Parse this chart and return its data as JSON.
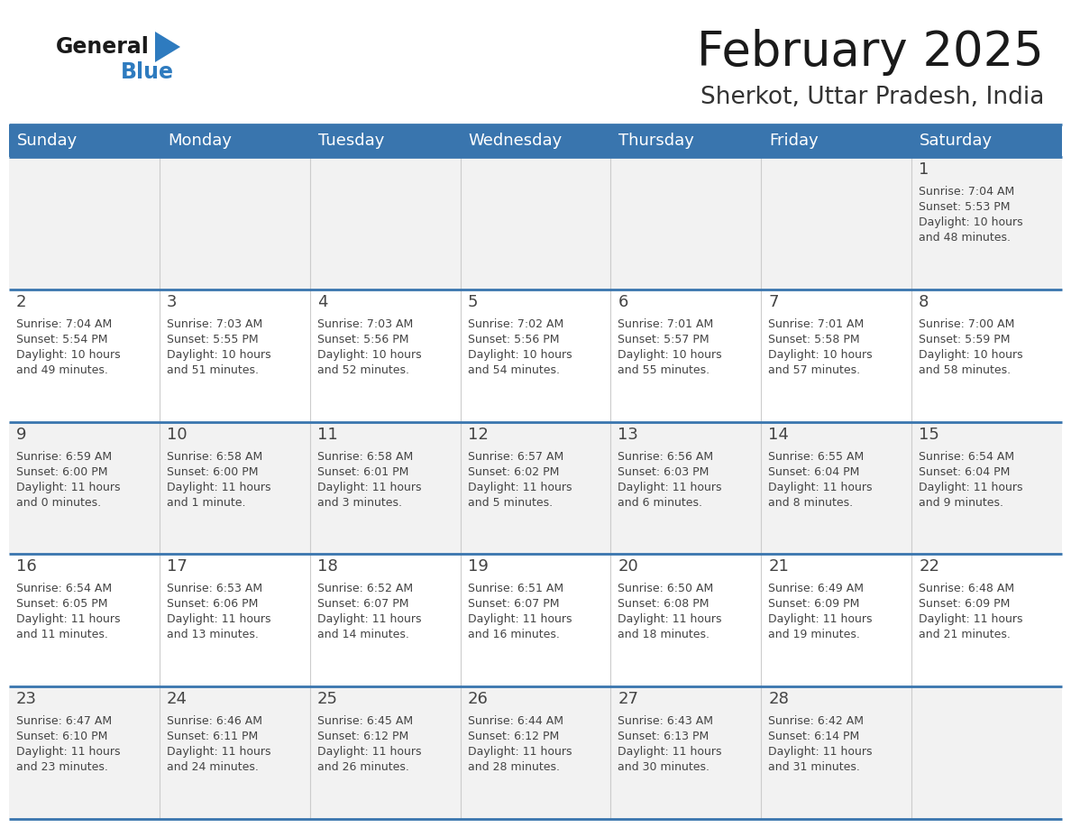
{
  "title": "February 2025",
  "subtitle": "Sherkot, Uttar Pradesh, India",
  "days_of_week": [
    "Sunday",
    "Monday",
    "Tuesday",
    "Wednesday",
    "Thursday",
    "Friday",
    "Saturday"
  ],
  "header_bg": "#3975ae",
  "header_text": "#ffffff",
  "cell_bg_light": "#f2f2f2",
  "cell_bg_white": "#ffffff",
  "divider_color": "#3975ae",
  "text_color": "#444444",
  "title_color": "#1a1a1a",
  "subtitle_color": "#333333",
  "logo_general_color": "#1a1a1a",
  "logo_blue_color": "#2e7bbf",
  "calendar_data": [
    [
      {
        "day": null,
        "info": null
      },
      {
        "day": null,
        "info": null
      },
      {
        "day": null,
        "info": null
      },
      {
        "day": null,
        "info": null
      },
      {
        "day": null,
        "info": null
      },
      {
        "day": null,
        "info": null
      },
      {
        "day": 1,
        "info": "Sunrise: 7:04 AM\nSunset: 5:53 PM\nDaylight: 10 hours\nand 48 minutes."
      }
    ],
    [
      {
        "day": 2,
        "info": "Sunrise: 7:04 AM\nSunset: 5:54 PM\nDaylight: 10 hours\nand 49 minutes."
      },
      {
        "day": 3,
        "info": "Sunrise: 7:03 AM\nSunset: 5:55 PM\nDaylight: 10 hours\nand 51 minutes."
      },
      {
        "day": 4,
        "info": "Sunrise: 7:03 AM\nSunset: 5:56 PM\nDaylight: 10 hours\nand 52 minutes."
      },
      {
        "day": 5,
        "info": "Sunrise: 7:02 AM\nSunset: 5:56 PM\nDaylight: 10 hours\nand 54 minutes."
      },
      {
        "day": 6,
        "info": "Sunrise: 7:01 AM\nSunset: 5:57 PM\nDaylight: 10 hours\nand 55 minutes."
      },
      {
        "day": 7,
        "info": "Sunrise: 7:01 AM\nSunset: 5:58 PM\nDaylight: 10 hours\nand 57 minutes."
      },
      {
        "day": 8,
        "info": "Sunrise: 7:00 AM\nSunset: 5:59 PM\nDaylight: 10 hours\nand 58 minutes."
      }
    ],
    [
      {
        "day": 9,
        "info": "Sunrise: 6:59 AM\nSunset: 6:00 PM\nDaylight: 11 hours\nand 0 minutes."
      },
      {
        "day": 10,
        "info": "Sunrise: 6:58 AM\nSunset: 6:00 PM\nDaylight: 11 hours\nand 1 minute."
      },
      {
        "day": 11,
        "info": "Sunrise: 6:58 AM\nSunset: 6:01 PM\nDaylight: 11 hours\nand 3 minutes."
      },
      {
        "day": 12,
        "info": "Sunrise: 6:57 AM\nSunset: 6:02 PM\nDaylight: 11 hours\nand 5 minutes."
      },
      {
        "day": 13,
        "info": "Sunrise: 6:56 AM\nSunset: 6:03 PM\nDaylight: 11 hours\nand 6 minutes."
      },
      {
        "day": 14,
        "info": "Sunrise: 6:55 AM\nSunset: 6:04 PM\nDaylight: 11 hours\nand 8 minutes."
      },
      {
        "day": 15,
        "info": "Sunrise: 6:54 AM\nSunset: 6:04 PM\nDaylight: 11 hours\nand 9 minutes."
      }
    ],
    [
      {
        "day": 16,
        "info": "Sunrise: 6:54 AM\nSunset: 6:05 PM\nDaylight: 11 hours\nand 11 minutes."
      },
      {
        "day": 17,
        "info": "Sunrise: 6:53 AM\nSunset: 6:06 PM\nDaylight: 11 hours\nand 13 minutes."
      },
      {
        "day": 18,
        "info": "Sunrise: 6:52 AM\nSunset: 6:07 PM\nDaylight: 11 hours\nand 14 minutes."
      },
      {
        "day": 19,
        "info": "Sunrise: 6:51 AM\nSunset: 6:07 PM\nDaylight: 11 hours\nand 16 minutes."
      },
      {
        "day": 20,
        "info": "Sunrise: 6:50 AM\nSunset: 6:08 PM\nDaylight: 11 hours\nand 18 minutes."
      },
      {
        "day": 21,
        "info": "Sunrise: 6:49 AM\nSunset: 6:09 PM\nDaylight: 11 hours\nand 19 minutes."
      },
      {
        "day": 22,
        "info": "Sunrise: 6:48 AM\nSunset: 6:09 PM\nDaylight: 11 hours\nand 21 minutes."
      }
    ],
    [
      {
        "day": 23,
        "info": "Sunrise: 6:47 AM\nSunset: 6:10 PM\nDaylight: 11 hours\nand 23 minutes."
      },
      {
        "day": 24,
        "info": "Sunrise: 6:46 AM\nSunset: 6:11 PM\nDaylight: 11 hours\nand 24 minutes."
      },
      {
        "day": 25,
        "info": "Sunrise: 6:45 AM\nSunset: 6:12 PM\nDaylight: 11 hours\nand 26 minutes."
      },
      {
        "day": 26,
        "info": "Sunrise: 6:44 AM\nSunset: 6:12 PM\nDaylight: 11 hours\nand 28 minutes."
      },
      {
        "day": 27,
        "info": "Sunrise: 6:43 AM\nSunset: 6:13 PM\nDaylight: 11 hours\nand 30 minutes."
      },
      {
        "day": 28,
        "info": "Sunrise: 6:42 AM\nSunset: 6:14 PM\nDaylight: 11 hours\nand 31 minutes."
      },
      {
        "day": null,
        "info": null
      }
    ]
  ]
}
